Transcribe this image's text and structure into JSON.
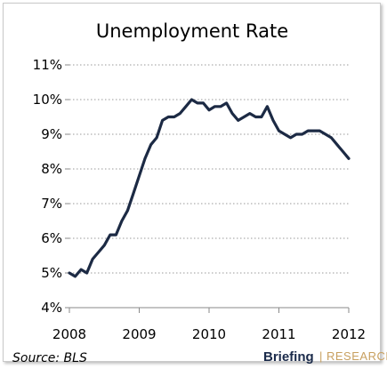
{
  "chart_data": {
    "type": "line",
    "title": "Unemployment Rate",
    "xlabel": "",
    "ylabel": "",
    "ylim": [
      4,
      11
    ],
    "xlim": [
      2008,
      2012
    ],
    "y_ticks": [
      "4%",
      "5%",
      "6%",
      "7%",
      "8%",
      "9%",
      "10%",
      "11%"
    ],
    "x_ticks": [
      "2008",
      "2009",
      "2010",
      "2011",
      "2012"
    ],
    "grid": "horizontal dotted",
    "line_color": "#1c2a44",
    "series": [
      {
        "x": [
          2008.0,
          2008.083,
          2008.167,
          2008.25,
          2008.333,
          2008.417,
          2008.5,
          2008.583,
          2008.667,
          2008.75,
          2008.833,
          2008.917,
          2009.0,
          2009.083,
          2009.167,
          2009.25,
          2009.333,
          2009.417,
          2009.5,
          2009.583,
          2009.667,
          2009.75,
          2009.833,
          2009.917,
          2010.0,
          2010.083,
          2010.167,
          2010.25,
          2010.333,
          2010.417,
          2010.5,
          2010.583,
          2010.667,
          2010.75,
          2010.833,
          2010.917,
          2011.0,
          2011.083,
          2011.167,
          2011.25,
          2011.333,
          2011.417,
          2011.5,
          2011.583,
          2011.667,
          2011.75,
          2011.833,
          2011.917,
          2012.0
        ],
        "y": [
          5.0,
          4.9,
          5.1,
          5.0,
          5.4,
          5.6,
          5.8,
          6.1,
          6.1,
          6.5,
          6.8,
          7.3,
          7.8,
          8.3,
          8.7,
          8.9,
          9.4,
          9.5,
          9.5,
          9.6,
          9.8,
          10.0,
          9.9,
          9.9,
          9.7,
          9.8,
          9.8,
          9.9,
          9.6,
          9.4,
          9.5,
          9.6,
          9.5,
          9.5,
          9.8,
          9.4,
          9.1,
          9.0,
          8.9,
          9.0,
          9.0,
          9.1,
          9.1,
          9.1,
          9.0,
          8.9,
          8.7,
          8.5,
          8.3
        ]
      }
    ]
  },
  "source": "Source: BLS",
  "brand": {
    "name": "Briefing",
    "divider": "|",
    "tagline": "RESEARCH"
  }
}
